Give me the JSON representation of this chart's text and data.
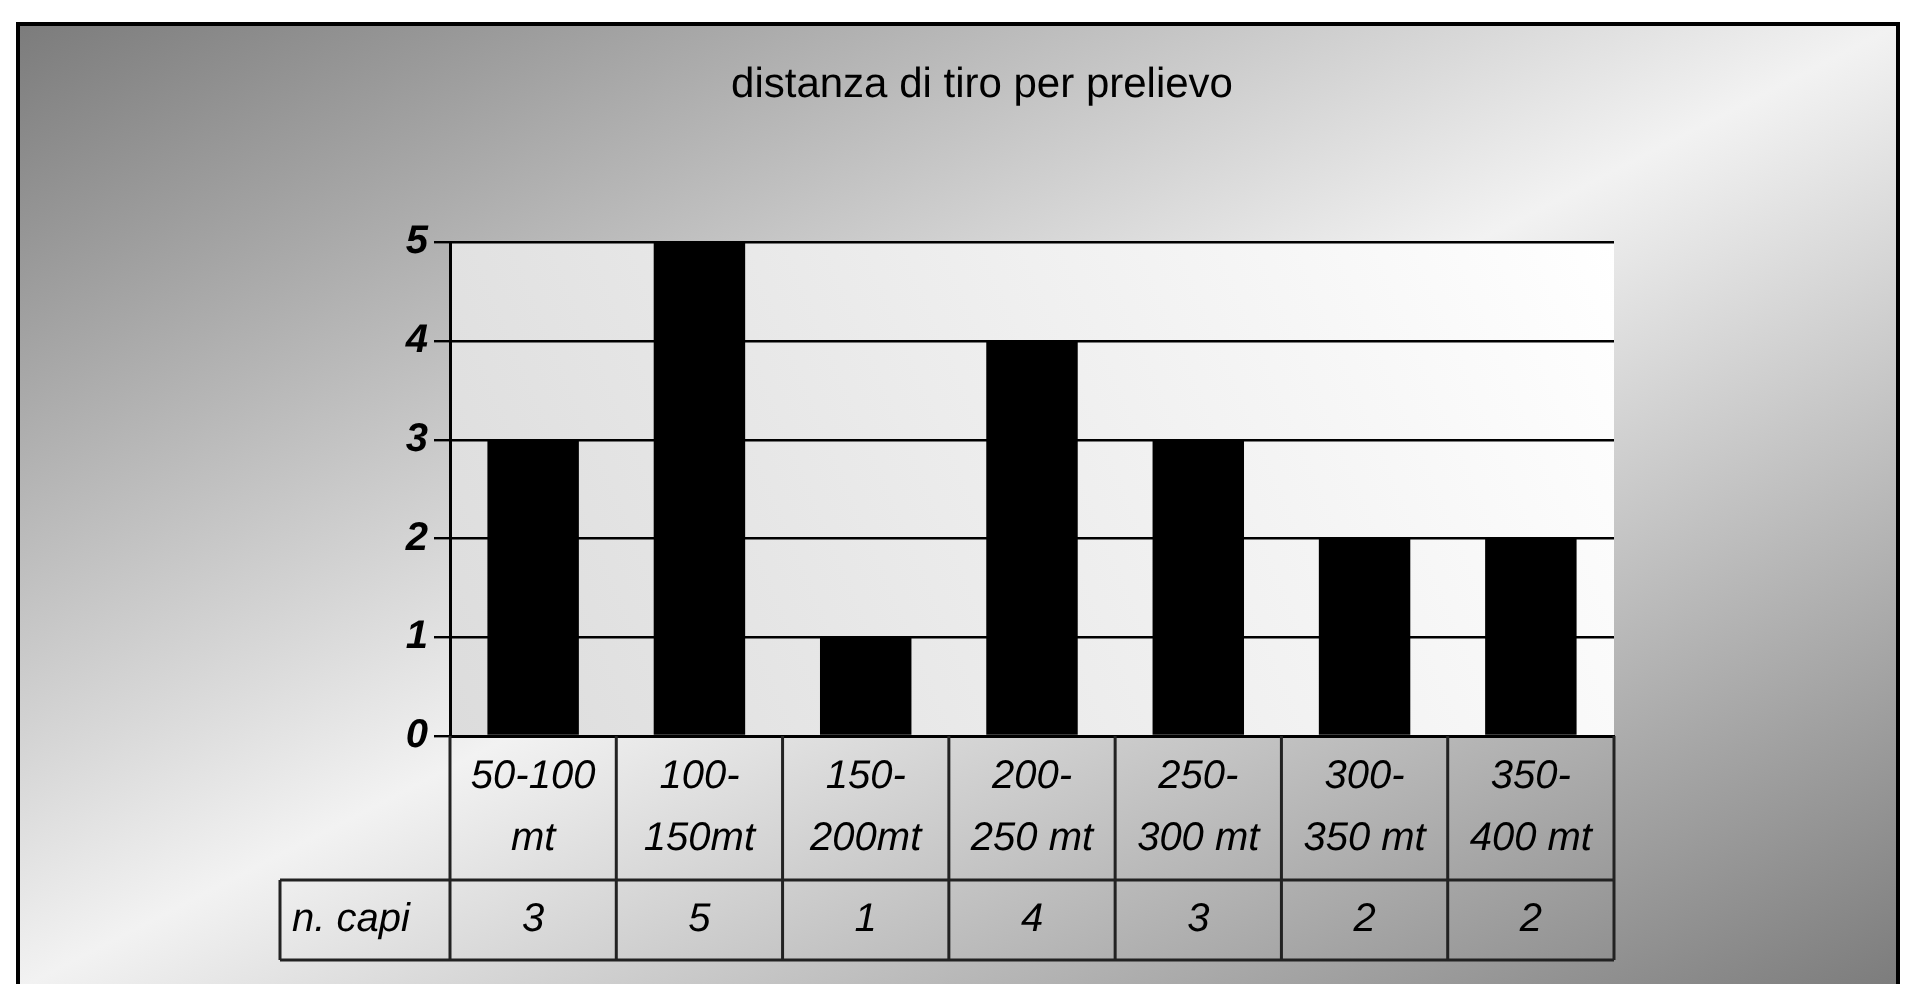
{
  "chart_data": {
    "type": "bar",
    "title": "distanza di tiro per prelievo",
    "categories": [
      "50-100 mt",
      "100-150mt",
      "150-200mt",
      "200-250 mt",
      "250-300 mt",
      "300-350 mt",
      "350-400 mt"
    ],
    "series": [
      {
        "name": "n. capi",
        "color": "#000000",
        "values": [
          3,
          5,
          1,
          4,
          3,
          2,
          2
        ]
      }
    ],
    "ylim": [
      0,
      5
    ],
    "yticks": [
      0,
      1,
      2,
      3,
      4,
      5
    ],
    "grid": "y",
    "data_labels": true
  }
}
